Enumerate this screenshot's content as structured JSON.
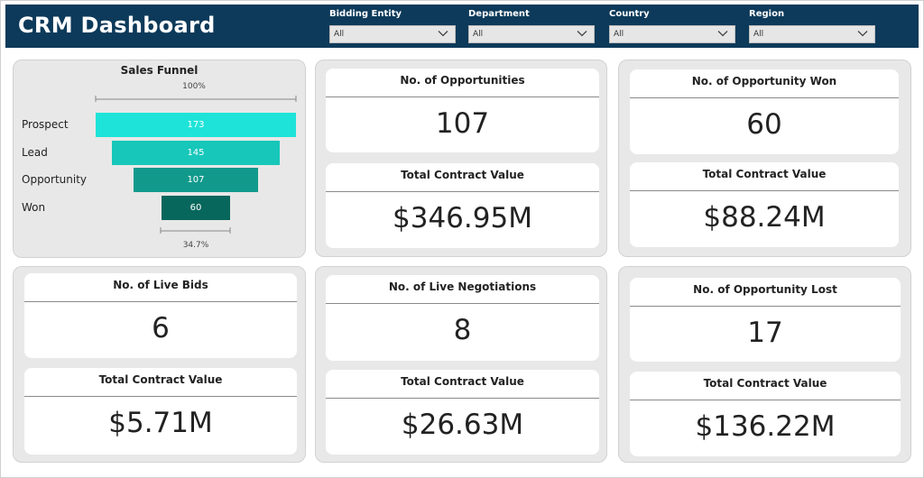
{
  "app": {
    "title": "CRM Dashboard"
  },
  "filters": [
    {
      "label": "Bidding Entity",
      "value": "All"
    },
    {
      "label": "Department",
      "value": "All"
    },
    {
      "label": "Country",
      "value": "All"
    },
    {
      "label": "Region",
      "value": "All"
    }
  ],
  "funnel": {
    "title": "Sales Funnel",
    "top_pct": "100%",
    "bottom_pct": "34.7%",
    "stages": [
      {
        "label": "Prospect",
        "value": 173,
        "display": "173",
        "color": "#1ee3d8"
      },
      {
        "label": "Lead",
        "value": 145,
        "display": "145",
        "color": "#17c7ba"
      },
      {
        "label": "Opportunity",
        "value": 107,
        "display": "107",
        "color": "#119a8c"
      },
      {
        "label": "Won",
        "value": 60,
        "display": "60",
        "color": "#08675c"
      }
    ]
  },
  "kpis": {
    "opportunities": {
      "title": "No. of Opportunities",
      "value": "107",
      "tcv_title": "Total Contract Value",
      "tcv": "$346.95M"
    },
    "won": {
      "title": "No. of Opportunity Won",
      "value": "60",
      "tcv_title": "Total Contract Value",
      "tcv": "$88.24M"
    },
    "live_bids": {
      "title": "No. of Live Bids",
      "value": "6",
      "tcv_title": "Total Contract Value",
      "tcv": "$5.71M"
    },
    "live_negotiations": {
      "title": "No. of Live Negotiations",
      "value": "8",
      "tcv_title": "Total Contract Value",
      "tcv": "$26.63M"
    },
    "lost": {
      "title": "No. of Opportunity Lost",
      "value": "17",
      "tcv_title": "Total Contract Value",
      "tcv": "$136.22M"
    }
  },
  "colors": {
    "header": "#0d3a5a",
    "card": "#e8e8e8"
  },
  "icons": {
    "dropdown": "chevron-down-icon"
  }
}
